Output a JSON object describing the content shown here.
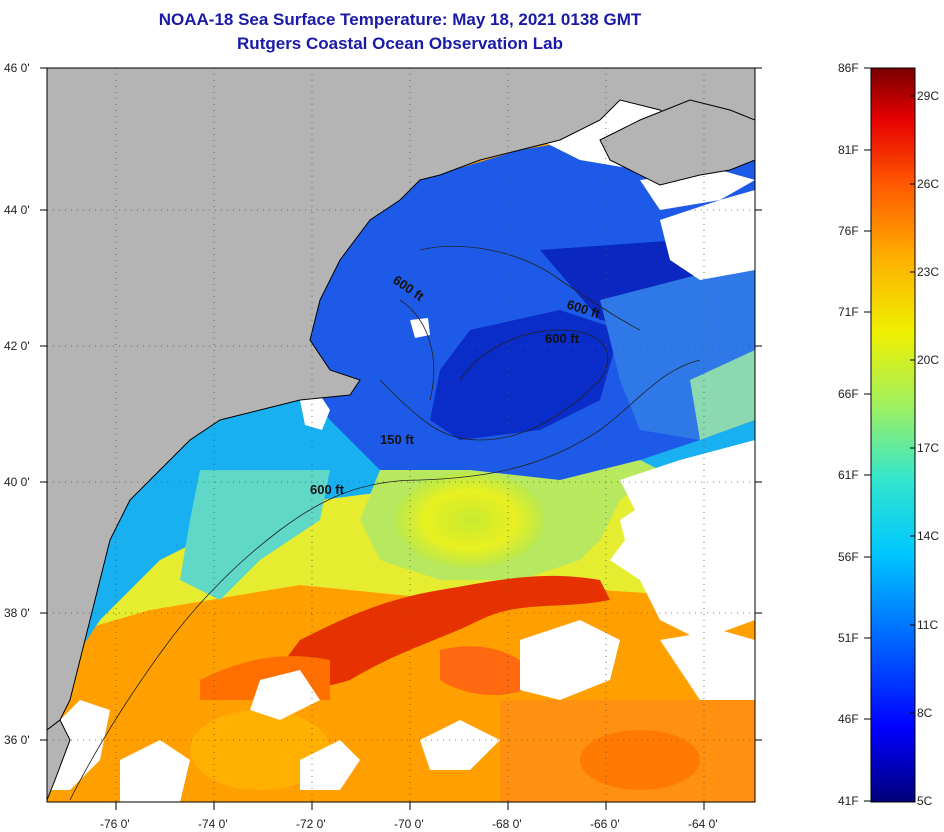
{
  "header": {
    "title": "NOAA-18 Sea Surface Temperature:  May 18, 2021 0138 GMT",
    "subtitle": "Rutgers Coastal Ocean Observation Lab"
  },
  "map": {
    "lat_labels": [
      "46 0'",
      "44 0'",
      "42 0'",
      "40 0'",
      "38 0'",
      "36 0'"
    ],
    "lon_labels": [
      "-76 0'",
      "-74 0'",
      "-72 0'",
      "-70 0'",
      "-68 0'",
      "-66 0'",
      "-64 0'"
    ],
    "contour_labels": [
      "600 ft",
      "600 ft",
      "600 ft",
      "150 ft",
      "600 ft"
    ],
    "colors": {
      "land": "#b4b4b4",
      "cloud": "#ffffff",
      "coast": "#000000"
    }
  },
  "colorbar": {
    "f_labels": [
      "86F",
      "81F",
      "76F",
      "71F",
      "66F",
      "61F",
      "56F",
      "51F",
      "46F",
      "41F"
    ],
    "c_labels": [
      "29C",
      "26C",
      "23C",
      "20C",
      "17C",
      "14C",
      "11C",
      "8C",
      "5C"
    ]
  }
}
